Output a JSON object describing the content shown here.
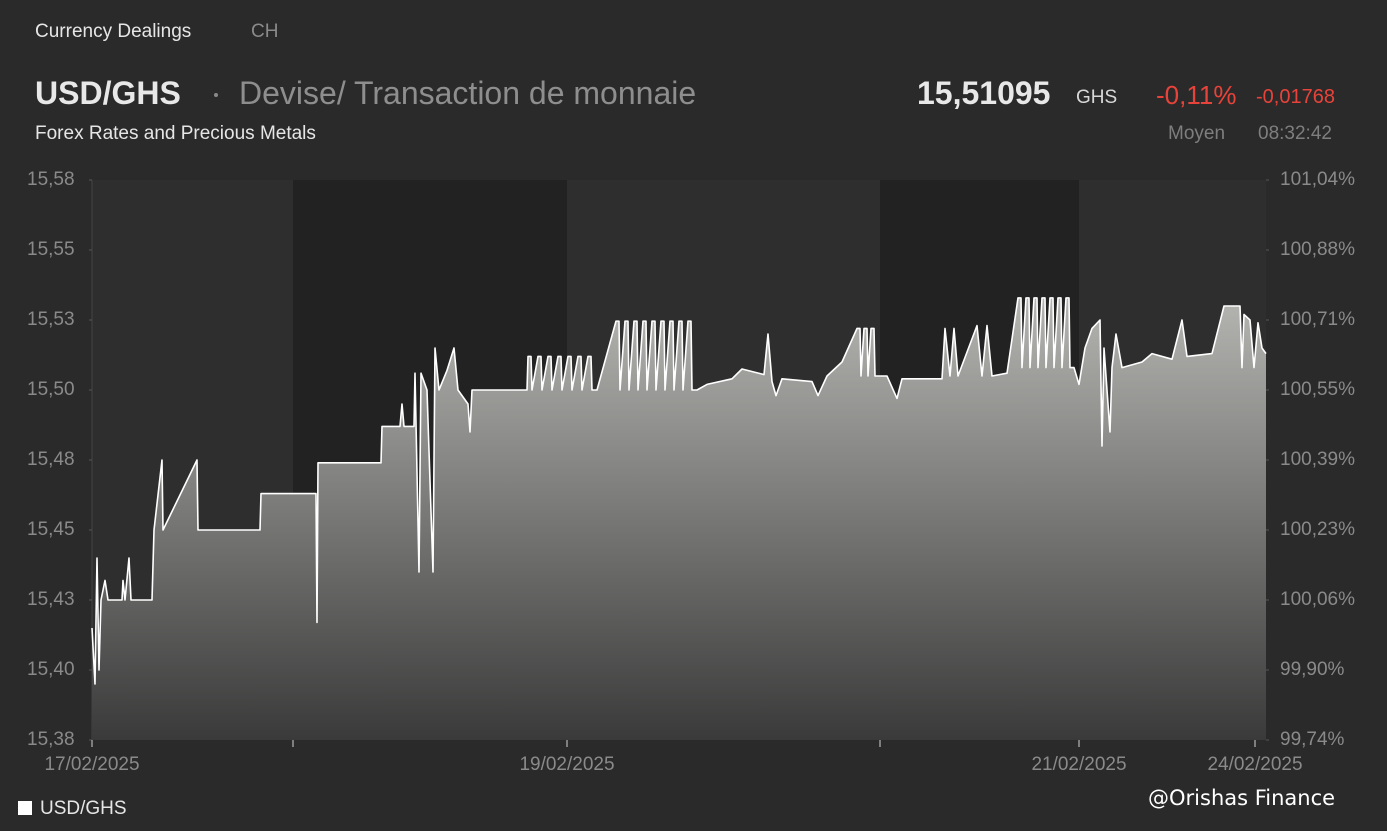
{
  "header": {
    "section": "Currency Dealings",
    "region": "CH",
    "pair": "USD/GHS",
    "kind": "Devise/ Transaction de monnaie",
    "subtitle": "Forex Rates and Precious Metals",
    "price": "15,51095",
    "currency": "GHS",
    "change_pct": "-0,11%",
    "change_abs": "-0,01768",
    "price_type": "Moyen",
    "time": "08:32:42"
  },
  "watermark": "@Orishas Finance",
  "chart_data": {
    "type": "area",
    "xlim": [
      0,
      1174
    ],
    "xticks": [
      {
        "value": 0,
        "label": "17/02/2025"
      },
      {
        "value": 201
      },
      {
        "value": 475,
        "label": "19/02/2025"
      },
      {
        "value": 788
      },
      {
        "value": 987,
        "label": "21/02/2025"
      },
      {
        "value": 1163,
        "label": "24/02/2025"
      }
    ],
    "ylim": [
      15.38,
      15.58
    ],
    "yticks": [
      {
        "value": 15.38,
        "label": "15,38"
      },
      {
        "value": 15.405,
        "label": "15,40"
      },
      {
        "value": 15.43,
        "label": "15,43"
      },
      {
        "value": 15.455,
        "label": "15,45"
      },
      {
        "value": 15.48,
        "label": "15,48"
      },
      {
        "value": 15.505,
        "label": "15,50"
      },
      {
        "value": 15.53,
        "label": "15,53"
      },
      {
        "value": 15.555,
        "label": "15,55"
      },
      {
        "value": 15.58,
        "label": "15,58"
      }
    ],
    "y2lim": [
      99.74,
      101.04
    ],
    "y2ticks": [
      {
        "value": 99.74,
        "label": "99,74%"
      },
      {
        "value": 99.9025,
        "label": "99,90%"
      },
      {
        "value": 100.065,
        "label": "100,06%"
      },
      {
        "value": 100.2275,
        "label": "100,23%"
      },
      {
        "value": 100.39,
        "label": "100,39%"
      },
      {
        "value": 100.5525,
        "label": "100,55%"
      },
      {
        "value": 100.715,
        "label": "100,71%"
      },
      {
        "value": 100.8775,
        "label": "100,88%"
      },
      {
        "value": 101.04,
        "label": "101,04%"
      }
    ],
    "series": [
      {
        "name": "USD/GHS",
        "color": "#ffffff",
        "x": [
          0,
          3,
          5,
          7,
          9,
          13,
          16,
          30,
          31,
          33,
          37,
          39,
          60,
          62,
          70,
          71,
          105,
          106,
          168,
          169,
          224,
          225,
          226,
          289,
          290,
          308,
          310,
          312,
          322,
          323,
          327,
          329,
          335,
          341,
          343,
          347,
          355,
          362,
          366,
          376,
          378,
          380,
          435,
          436,
          439,
          440,
          446,
          449,
          450,
          456,
          459,
          460,
          466,
          469,
          470,
          476,
          479,
          480,
          486,
          489,
          490,
          496,
          499,
          500,
          505,
          524,
          527,
          528,
          533,
          536,
          537,
          542,
          545,
          546,
          551,
          554,
          555,
          560,
          563,
          564,
          569,
          572,
          573,
          578,
          581,
          582,
          587,
          590,
          591,
          596,
          599,
          600,
          605,
          615,
          640,
          650,
          672,
          676,
          680,
          684,
          690,
          720,
          726,
          735,
          750,
          765,
          768,
          769,
          772,
          775,
          776,
          779,
          782,
          783,
          787,
          795,
          805,
          810,
          850,
          853,
          858,
          862,
          866,
          885,
          890,
          895,
          900,
          915,
          926,
          929,
          930,
          934,
          937,
          938,
          942,
          945,
          946,
          950,
          953,
          954,
          958,
          961,
          962,
          966,
          969,
          970,
          974,
          977,
          978,
          982,
          987,
          993,
          1000,
          1008,
          1010,
          1012,
          1018,
          1020,
          1024,
          1030,
          1050,
          1060,
          1080,
          1090,
          1095,
          1120,
          1132,
          1148,
          1150,
          1152,
          1158,
          1162,
          1166,
          1170,
          1174
        ],
        "values": [
          15.42,
          15.4,
          15.445,
          15.405,
          15.43,
          15.437,
          15.43,
          15.43,
          15.437,
          15.43,
          15.445,
          15.43,
          15.43,
          15.455,
          15.48,
          15.455,
          15.48,
          15.455,
          15.455,
          15.468,
          15.468,
          15.422,
          15.479,
          15.479,
          15.492,
          15.492,
          15.5,
          15.492,
          15.492,
          15.511,
          15.44,
          15.511,
          15.505,
          15.44,
          15.52,
          15.505,
          15.512,
          15.52,
          15.505,
          15.5,
          15.49,
          15.505,
          15.505,
          15.517,
          15.517,
          15.505,
          15.517,
          15.517,
          15.505,
          15.517,
          15.517,
          15.505,
          15.517,
          15.517,
          15.505,
          15.517,
          15.517,
          15.505,
          15.517,
          15.517,
          15.505,
          15.517,
          15.517,
          15.505,
          15.505,
          15.5296,
          15.5296,
          15.505,
          15.5296,
          15.5296,
          15.505,
          15.5296,
          15.5296,
          15.505,
          15.5296,
          15.5296,
          15.505,
          15.5296,
          15.5296,
          15.505,
          15.5296,
          15.5296,
          15.505,
          15.5296,
          15.5296,
          15.505,
          15.5296,
          15.5296,
          15.505,
          15.5296,
          15.5296,
          15.505,
          15.505,
          15.507,
          15.509,
          15.5125,
          15.5105,
          15.525,
          15.508,
          15.503,
          15.509,
          15.508,
          15.503,
          15.51,
          15.515,
          15.527,
          15.527,
          15.51,
          15.527,
          15.527,
          15.51,
          15.527,
          15.527,
          15.51,
          15.51,
          15.51,
          15.502,
          15.509,
          15.509,
          15.527,
          15.51,
          15.527,
          15.51,
          15.528,
          15.51,
          15.528,
          15.51,
          15.511,
          15.5379,
          15.5379,
          15.513,
          15.5379,
          15.5379,
          15.513,
          15.5379,
          15.5379,
          15.513,
          15.5379,
          15.5379,
          15.513,
          15.5379,
          15.5379,
          15.513,
          15.5379,
          15.5379,
          15.513,
          15.5379,
          15.5379,
          15.513,
          15.513,
          15.507,
          15.52,
          15.527,
          15.53,
          15.485,
          15.52,
          15.49,
          15.513,
          15.525,
          15.513,
          15.515,
          15.518,
          15.516,
          15.53,
          15.517,
          15.518,
          15.535,
          15.535,
          15.513,
          15.532,
          15.53,
          15.513,
          15.529,
          15.52,
          15.518
        ]
      }
    ]
  }
}
